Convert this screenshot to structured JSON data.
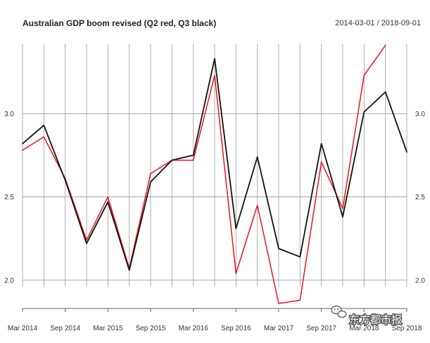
{
  "header": {
    "title": "Australian GDP boom revised (Q2 red, Q3 black)",
    "date_range": "2014-03-01 / 2018-09-01"
  },
  "watermark": {
    "text": "东方都市报"
  },
  "chart_data": {
    "type": "line",
    "title": "Australian GDP boom revised (Q2 red, Q3 black)",
    "subtitle": "2014-03-01 / 2018-09-01",
    "xlabel": "",
    "ylabel": "",
    "x": [
      "2014-03",
      "2014-06",
      "2014-09",
      "2014-12",
      "2015-03",
      "2015-06",
      "2015-09",
      "2015-12",
      "2016-03",
      "2016-06",
      "2016-09",
      "2016-12",
      "2017-03",
      "2017-06",
      "2017-09",
      "2017-12",
      "2018-03",
      "2018-06",
      "2018-09"
    ],
    "x_tick_labels": [
      "Mar 2014",
      "Sep 2014",
      "Mar 2015",
      "Sep 2015",
      "Mar 2016",
      "Sep 2016",
      "Mar 2017",
      "Sep 2017",
      "Mar 2018",
      "Sep 2018"
    ],
    "x_tick_positions": [
      "2014-03",
      "2014-09",
      "2015-03",
      "2015-09",
      "2016-03",
      "2016-09",
      "2017-03",
      "2017-09",
      "2018-03",
      "2018-09"
    ],
    "y_ticks": [
      "2.0",
      "2.5",
      "3.0"
    ],
    "y_tick_values": [
      2.0,
      2.5,
      3.0
    ],
    "ylim": [
      1.83,
      3.42
    ],
    "grid": true,
    "series": [
      {
        "color": "#e8141b",
        "values": [
          2.78,
          2.86,
          2.61,
          2.24,
          2.5,
          2.07,
          2.64,
          2.72,
          2.72,
          3.23,
          2.04,
          2.45,
          1.86,
          1.88,
          2.71,
          2.43,
          3.23,
          3.41,
          null
        ]
      },
      {
        "color": "#111111",
        "values": [
          2.82,
          2.93,
          2.6,
          2.22,
          2.47,
          2.06,
          2.59,
          2.72,
          2.75,
          3.33,
          2.31,
          2.74,
          2.19,
          2.14,
          2.82,
          2.38,
          3.01,
          3.13,
          2.77
        ]
      }
    ]
  }
}
